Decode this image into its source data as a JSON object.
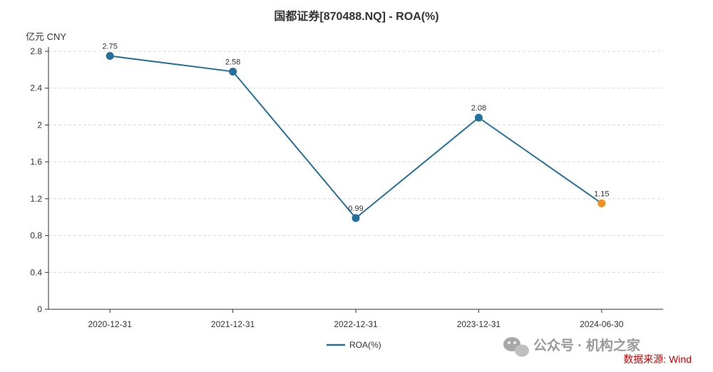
{
  "chart_data": {
    "type": "line",
    "title": "国都证券[870488.NQ] - ROA(%)",
    "unit_label": "亿元  CNY",
    "categories": [
      "2020-12-31",
      "2021-12-31",
      "2022-12-31",
      "2023-12-31",
      "2024-06-30"
    ],
    "series": [
      {
        "name": "ROA(%)",
        "values": [
          2.75,
          2.58,
          0.99,
          2.08,
          1.15
        ],
        "color": "#24709c",
        "highlight_last_color": "#f28e1c"
      }
    ],
    "data_labels": [
      "2.75",
      "2.58",
      "0.99",
      "2.08",
      "1.15"
    ],
    "y_ticks": [
      "0",
      "0.4",
      "0.8",
      "1.2",
      "1.6",
      "2",
      "2.4",
      "2.8"
    ],
    "ylim": [
      0,
      2.8
    ],
    "grid": true,
    "legend_position": "bottom-center"
  },
  "watermark": "公众号 · 机构之家",
  "source": "数据来源: Wind"
}
